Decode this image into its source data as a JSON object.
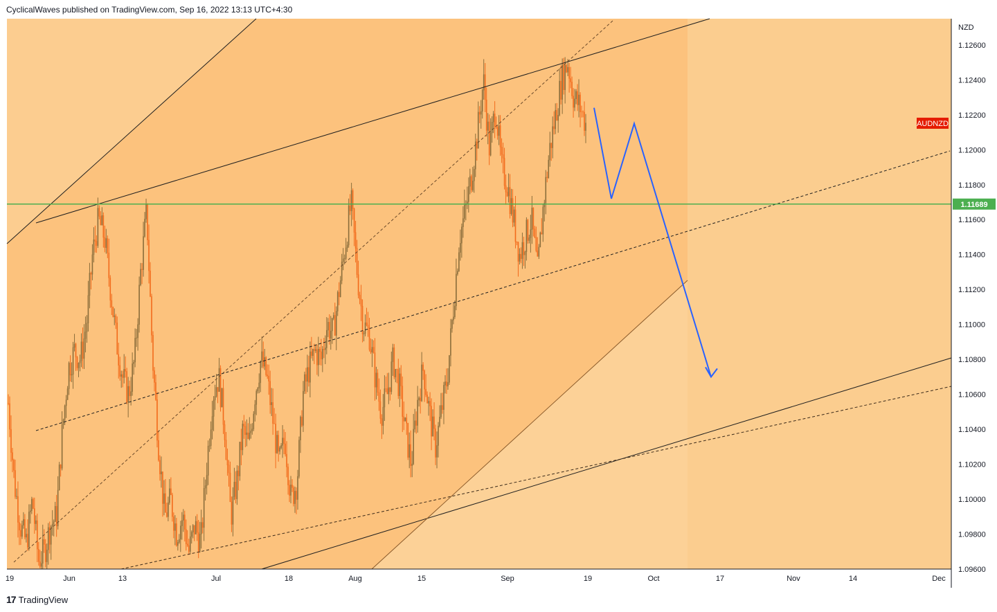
{
  "header": {
    "published_text": "CyclicalWaves published on TradingView.com, Sep 16, 2022 13:13 UTC+4:30"
  },
  "footer": {
    "brand": "TradingView",
    "logo_text": "17"
  },
  "chart_data": {
    "type": "candlestick",
    "symbol_label": "AUDNZD",
    "currency_label": "NZD",
    "last_price_label": "1.11689",
    "ylim": [
      1.096,
      1.1275
    ],
    "y_ticks": [
      "1.12600",
      "1.12400",
      "1.12200",
      "1.12000",
      "1.11800",
      "1.11600",
      "1.11400",
      "1.11200",
      "1.11000",
      "1.10800",
      "1.10600",
      "1.10400",
      "1.10200",
      "1.10000",
      "1.09800",
      "1.09600"
    ],
    "x_ticks": [
      "19",
      "Jun",
      "13",
      "Jul",
      "18",
      "Aug",
      "15",
      "Sep",
      "19",
      "Oct",
      "17",
      "Nov",
      "14",
      "Dec"
    ],
    "price_path": [
      1.1055,
      1.101,
      1.0985,
      1.0975,
      1.1,
      1.0965,
      1.097,
      1.0985,
      1.099,
      1.104,
      1.1075,
      1.1085,
      1.108,
      1.11,
      1.114,
      1.116,
      1.115,
      1.112,
      1.109,
      1.107,
      1.106,
      1.108,
      1.113,
      1.1165,
      1.108,
      1.103,
      1.099,
      1.1,
      1.098,
      1.099,
      1.097,
      1.0985,
      1.0975,
      1.102,
      1.106,
      1.107,
      1.104,
      1.099,
      1.101,
      1.104,
      1.103,
      1.106,
      1.108,
      1.107,
      1.1045,
      1.102,
      1.1035,
      1.1,
      1.101,
      1.106,
      1.1075,
      1.1085,
      1.108,
      1.11,
      1.1095,
      1.112,
      1.1145,
      1.117,
      1.113,
      1.11,
      1.1095,
      1.107,
      1.105,
      1.106,
      1.108,
      1.1065,
      1.104,
      1.102,
      1.1055,
      1.1075,
      1.105,
      1.103,
      1.105,
      1.107,
      1.111,
      1.115,
      1.1165,
      1.1185,
      1.121,
      1.124,
      1.12,
      1.1225,
      1.119,
      1.118,
      1.116,
      1.114,
      1.115,
      1.116,
      1.113,
      1.117,
      1.12,
      1.122,
      1.124,
      1.125,
      1.123,
      1.1225,
      1.1215
    ],
    "annotations": {
      "horizontal_level": 1.11689,
      "projection": [
        1.1224,
        1.1172,
        1.1215,
        1.107
      ]
    }
  }
}
